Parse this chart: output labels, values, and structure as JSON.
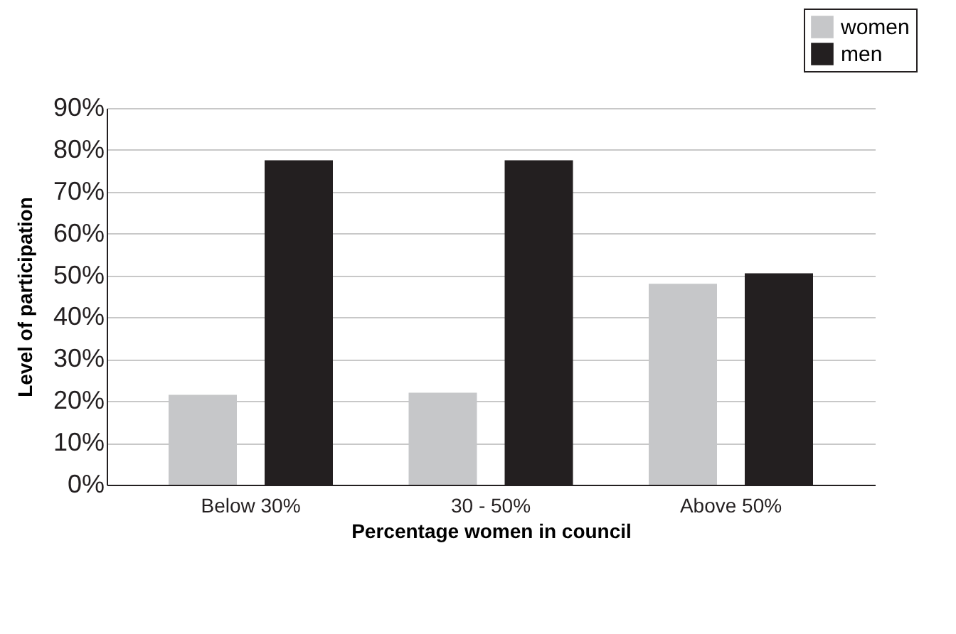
{
  "chart_data": {
    "type": "bar",
    "categories": [
      "Below 30%",
      "30 - 50%",
      "Above 50%"
    ],
    "series": [
      {
        "name": "women",
        "color": "#c6c7c9",
        "values": [
          21.5,
          22,
          48
        ]
      },
      {
        "name": "men",
        "color": "#231f20",
        "values": [
          77.5,
          77.5,
          50.5
        ]
      }
    ],
    "xlabel": "Percentage women in council",
    "ylabel": "Level of participation",
    "ylim": [
      0,
      90
    ],
    "yticks": [
      {
        "value": 0,
        "label": "0%"
      },
      {
        "value": 10,
        "label": "10%"
      },
      {
        "value": 20,
        "label": "20%"
      },
      {
        "value": 30,
        "label": "30%"
      },
      {
        "value": 40,
        "label": "40%"
      },
      {
        "value": 50,
        "label": "50%"
      },
      {
        "value": 60,
        "label": "60%"
      },
      {
        "value": 70,
        "label": "70%"
      },
      {
        "value": 80,
        "label": "80%"
      },
      {
        "value": 90,
        "label": "90%"
      }
    ],
    "grid": "y",
    "legend": "top right"
  }
}
